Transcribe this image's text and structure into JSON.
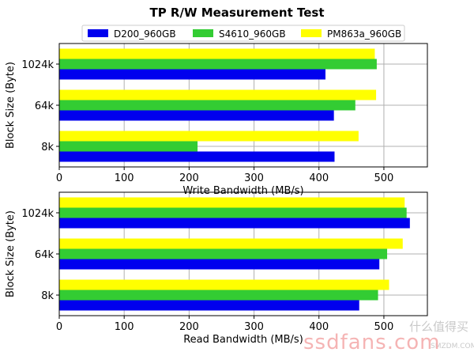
{
  "chart_data": {
    "type": "bar",
    "orientation": "horizontal",
    "title": "TP R/W Measurement Test",
    "legend": {
      "placement": "top",
      "entries": [
        "D200_960GB",
        "S4610_960GB",
        "PM863a_960GB"
      ]
    },
    "categories": [
      "8k",
      "64k",
      "1024k"
    ],
    "colors": {
      "D200_960GB": "#0000ee",
      "S4610_960GB": "#33cc33",
      "PM863a_960GB": "#ffff00"
    },
    "grid": true,
    "subplots": [
      {
        "xlabel": "Write Bandwidth (MB/s)",
        "ylabel": "Block Size (Byte)",
        "xlim": [
          0,
          567
        ],
        "xticks": [
          "0",
          "100",
          "200",
          "300",
          "400",
          "500"
        ],
        "series": [
          {
            "name": "D200_960GB",
            "values": [
              424,
              423,
              410
            ]
          },
          {
            "name": "S4610_960GB",
            "values": [
              213,
              456,
              489
            ]
          },
          {
            "name": "PM863a_960GB",
            "values": [
              461,
              488,
              486
            ]
          }
        ]
      },
      {
        "xlabel": "Read Bandwidth (MB/s)",
        "ylabel": "Block Size (Byte)",
        "xlim": [
          0,
          567
        ],
        "xticks": [
          "0",
          "100",
          "200",
          "300",
          "400",
          "500"
        ],
        "series": [
          {
            "name": "D200_960GB",
            "values": [
              462,
              493,
              540
            ]
          },
          {
            "name": "S4610_960GB",
            "values": [
              491,
              505,
              535
            ]
          },
          {
            "name": "PM863a_960GB",
            "values": [
              508,
              529,
              532
            ]
          }
        ]
      }
    ]
  },
  "watermark": {
    "site_cn": "什么值得买",
    "url": "ssdfans.com",
    "small": "SMZDM.COM"
  }
}
